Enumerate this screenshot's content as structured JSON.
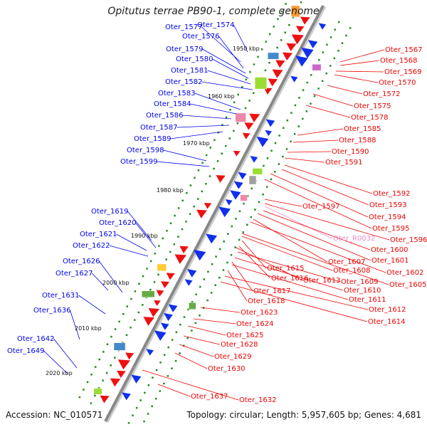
{
  "title": "Opitutus terrae PB90-1, complete genome",
  "footer": {
    "accession": "Accession: NC_010571",
    "summary": "Topology: circular; Length: 5,957,605 bp; Genes: 4,681"
  },
  "colors": {
    "forward_label": "#0000ee",
    "reverse_label": "#ee0000",
    "rna_label": "#ee88cc",
    "backbone": "#888888",
    "forward_gene": "#1030ee",
    "reverse_gene": "#ee1010",
    "tick": "#228822"
  },
  "scale_labels": [
    "1950 kbp",
    "1960 kbp",
    "1970 kbp",
    "1980 kbp",
    "1990 kbp",
    "2000 kbp",
    "2010 kbp",
    "2020 kbp"
  ],
  "left_labels": [
    "Oter_1577",
    "Oter_1574",
    "Oter_1576",
    "Oter_1579",
    "Oter_1580",
    "Oter_1581",
    "Oter_1582",
    "Oter_1583",
    "Oter_1584",
    "Oter_1586",
    "Oter_1587",
    "Oter_1589",
    "Oter_1598",
    "Oter_1599",
    "Oter_1619",
    "Oter_1620",
    "Oter_1621",
    "Oter_1622",
    "Oter_1626",
    "Oter_1627",
    "Oter_1631",
    "Oter_1636",
    "Oter_1642",
    "Oter_1649"
  ],
  "right_labels": [
    "Oter_1567",
    "Oter_1568",
    "Oter_1569",
    "Oter_1570",
    "Oter_1572",
    "Oter_1575",
    "Oter_1578",
    "Oter_1585",
    "Oter_1588",
    "Oter_1590",
    "Oter_1591",
    "Oter_1592",
    "Oter_1593",
    "Oter_1597",
    "Oter_1594",
    "Oter_1595",
    "Oter_1596",
    "Oter_R0032",
    "Oter_1600",
    "Oter_1607",
    "Oter_1601",
    "Oter_1602",
    "Oter_1608",
    "Oter_1615",
    "Oter_1616",
    "Oter_1613",
    "Oter_1609",
    "Oter_1605",
    "Oter_1617",
    "Oter_1610",
    "Oter_1611",
    "Oter_1618",
    "Oter_1612",
    "Oter_1623",
    "Oter_1614",
    "Oter_1624",
    "Oter_1625",
    "Oter_1628",
    "Oter_1629",
    "Oter_1630",
    "Oter_1637",
    "Oter_1632"
  ]
}
